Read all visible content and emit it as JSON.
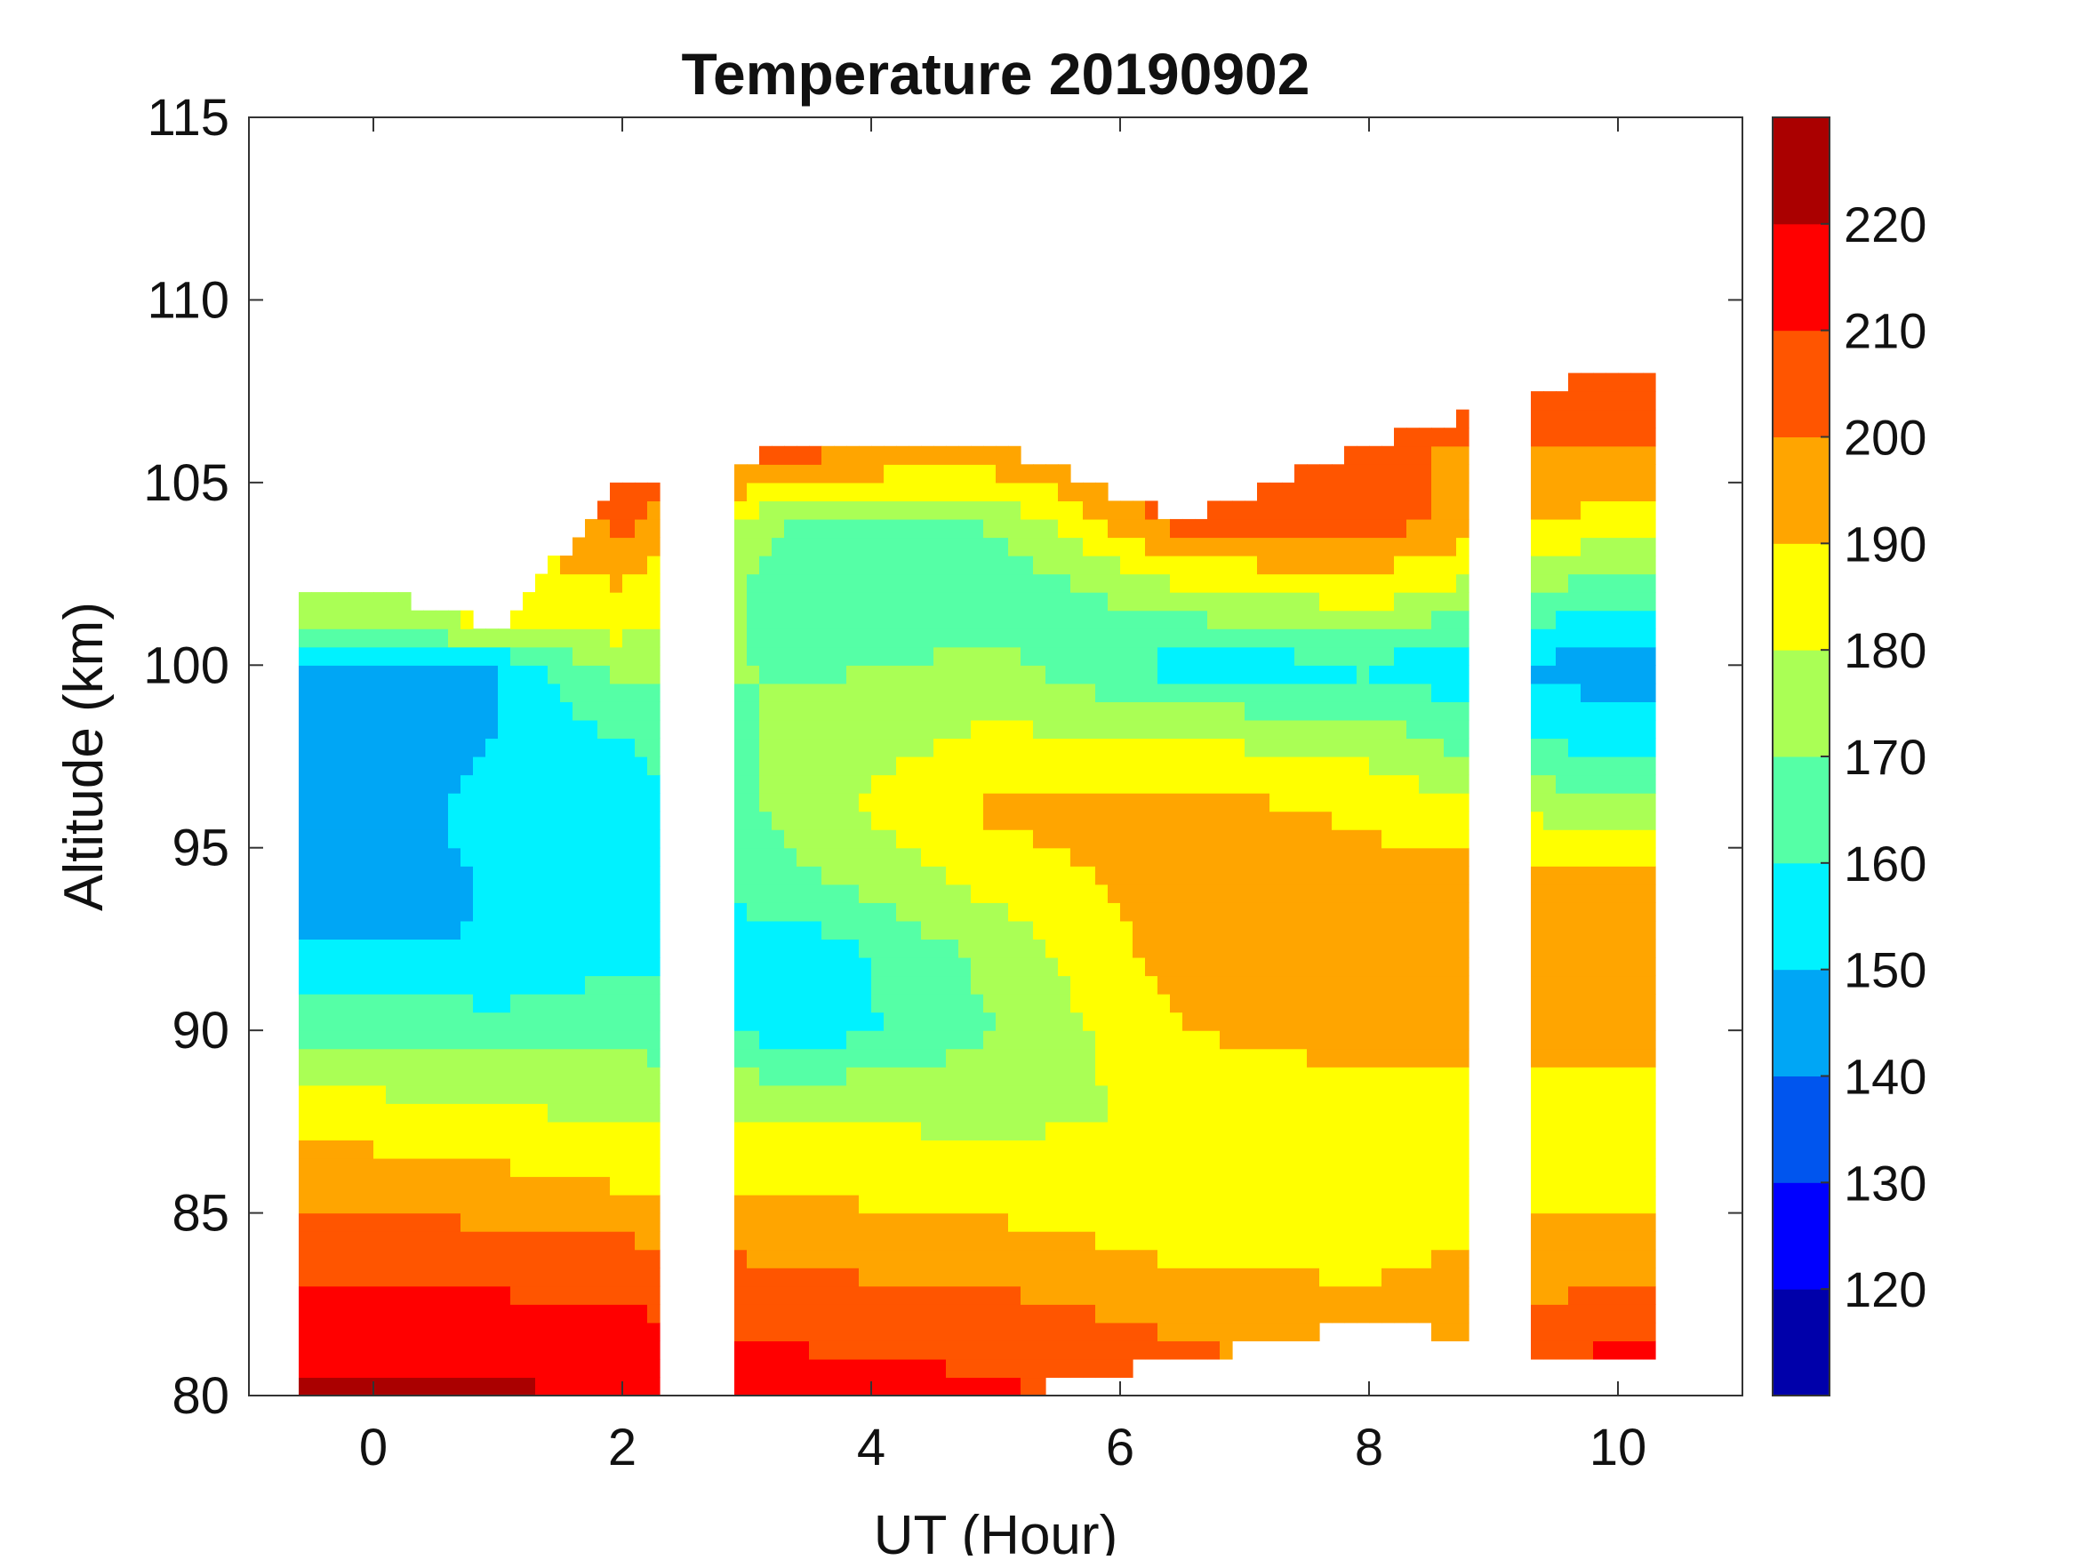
{
  "chart_data": {
    "type": "heatmap",
    "subtype": "filled-contour",
    "title": "Temperature 20190902",
    "xlabel": "UT (Hour)",
    "ylabel": "Altitude (km)",
    "xlim": [
      -1,
      11
    ],
    "ylim": [
      80,
      115
    ],
    "x_ticks": [
      0,
      2,
      4,
      6,
      8,
      10
    ],
    "y_ticks": [
      80,
      85,
      90,
      95,
      100,
      105,
      110,
      115
    ],
    "x_tick_labels": [
      "0",
      "2",
      "4",
      "6",
      "8",
      "10"
    ],
    "y_tick_labels": [
      "80",
      "85",
      "90",
      "95",
      "100",
      "105",
      "110",
      "115"
    ],
    "colorbar": {
      "range": [
        110,
        230
      ],
      "ticks": [
        120,
        130,
        140,
        150,
        160,
        170,
        180,
        190,
        200,
        210,
        220
      ],
      "tick_labels": [
        "120",
        "130",
        "140",
        "150",
        "160",
        "170",
        "180",
        "190",
        "200",
        "210",
        "220"
      ],
      "levels": [
        {
          "min": 110,
          "max": 120,
          "color": "#0000aa"
        },
        {
          "min": 120,
          "max": 130,
          "color": "#0000ff"
        },
        {
          "min": 130,
          "max": 140,
          "color": "#0055ee"
        },
        {
          "min": 140,
          "max": 150,
          "color": "#00a6f5"
        },
        {
          "min": 150,
          "max": 160,
          "color": "#00f2ff"
        },
        {
          "min": 160,
          "max": 170,
          "color": "#55ffa6"
        },
        {
          "min": 170,
          "max": 180,
          "color": "#aaff55"
        },
        {
          "min": 180,
          "max": 190,
          "color": "#ffff00"
        },
        {
          "min": 190,
          "max": 200,
          "color": "#ffa500"
        },
        {
          "min": 200,
          "max": 210,
          "color": "#ff5500"
        },
        {
          "min": 210,
          "max": 220,
          "color": "#ff0000"
        },
        {
          "min": 220,
          "max": 230,
          "color": "#aa0000"
        }
      ]
    },
    "data_segments_ut": [
      [
        -0.6,
        2.3
      ],
      [
        2.9,
        8.8
      ],
      [
        9.3,
        10.3
      ]
    ],
    "temperature_profiles": [
      {
        "ut": 0.0,
        "altitude_km": [
          80,
          82,
          84,
          86,
          88,
          90,
          92,
          94,
          96,
          98,
          100,
          102
        ],
        "temperature_k": [
          222,
          216,
          205,
          195,
          182,
          168,
          152,
          142,
          140,
          143,
          150,
          182
        ]
      },
      {
        "ut": 1.0,
        "altitude_km": [
          80,
          82,
          84,
          86,
          88,
          90,
          92,
          94,
          96,
          98,
          100,
          101
        ],
        "temperature_k": [
          222,
          214,
          204,
          192,
          180,
          165,
          150,
          152,
          157,
          150,
          150,
          185
        ]
      },
      {
        "ut": 2.0,
        "altitude_km": [
          80,
          82,
          84,
          86,
          88,
          90,
          92,
          94,
          96,
          98,
          100,
          105
        ],
        "temperature_k": [
          218,
          212,
          202,
          188,
          176,
          168,
          158,
          154,
          153,
          160,
          175,
          210
        ]
      },
      {
        "ut": 3.5,
        "altitude_km": [
          80,
          82,
          84,
          86,
          88,
          90,
          92,
          94,
          96,
          98,
          100,
          102,
          104,
          106
        ],
        "temperature_k": [
          215,
          207,
          197,
          187,
          178,
          154,
          153,
          168,
          176,
          174,
          168,
          160,
          166,
          205
        ]
      },
      {
        "ut": 5.0,
        "altitude_km": [
          80,
          82,
          84,
          86,
          88,
          90,
          92,
          94,
          96,
          98,
          100,
          102,
          104,
          106
        ],
        "temperature_k": [
          212,
          205,
          194,
          184,
          176,
          170,
          173,
          183,
          192,
          182,
          173,
          160,
          172,
          200
        ]
      },
      {
        "ut": 6.5,
        "altitude_km": [
          81,
          82,
          84,
          86,
          88,
          90,
          92,
          94,
          96,
          98,
          100,
          102,
          104
        ],
        "temperature_k": [
          202,
          198,
          188,
          184,
          182,
          190,
          195,
          195,
          195,
          180,
          155,
          178,
          205
        ]
      },
      {
        "ut": 8.0,
        "altitude_km": [
          82,
          84,
          86,
          88,
          90,
          92,
          94,
          96,
          98,
          100,
          102,
          104,
          106
        ],
        "temperature_k": [
          195,
          186,
          182,
          186,
          195,
          196,
          194,
          188,
          175,
          158,
          185,
          205,
          200
        ]
      },
      {
        "ut": 9.8,
        "altitude_km": [
          81,
          82,
          84,
          86,
          88,
          90,
          92,
          94,
          96,
          98,
          100,
          102,
          104,
          106,
          108
        ],
        "temperature_k": [
          212,
          204,
          196,
          186,
          185,
          193,
          195,
          196,
          175,
          155,
          145,
          165,
          188,
          200,
          205
        ]
      }
    ]
  }
}
